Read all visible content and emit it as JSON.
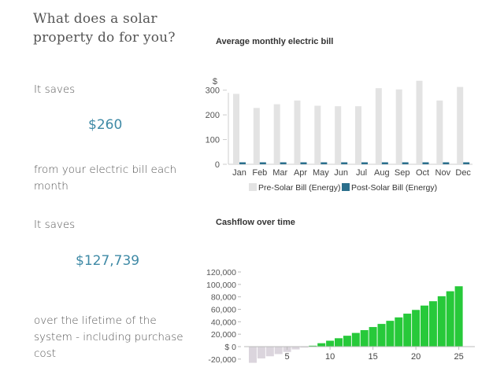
{
  "heading": "What does a solar property do for you?",
  "monthly": {
    "intro": "It saves",
    "value": "$260",
    "caption": "from your electric bill each month"
  },
  "lifetime": {
    "intro": "It saves",
    "value": "$127,739",
    "caption": "over the lifetime of the system - including purchase cost"
  },
  "chart_data": [
    {
      "type": "bar",
      "title": "Average monthly electric bill",
      "ylabel": "$",
      "categories": [
        "Jan",
        "Feb",
        "Mar",
        "Apr",
        "May",
        "Jun",
        "Jul",
        "Aug",
        "Sep",
        "Oct",
        "Nov",
        "Dec"
      ],
      "series": [
        {
          "name": "Pre-Solar Bill (Energy)",
          "color": "#e3e3e3",
          "values": [
            285,
            228,
            243,
            258,
            237,
            235,
            235,
            308,
            303,
            338,
            258,
            313
          ]
        },
        {
          "name": "Post-Solar Bill (Energy)",
          "color": "#2b6f8c",
          "values": [
            8,
            8,
            8,
            8,
            8,
            8,
            8,
            8,
            8,
            8,
            8,
            8
          ]
        }
      ],
      "yticks": [
        0,
        100,
        200,
        300
      ],
      "ylim": [
        0,
        350
      ],
      "legend": "bottom",
      "grid": false
    },
    {
      "type": "bar",
      "title": "Cashflow over time",
      "x": [
        1,
        2,
        3,
        4,
        5,
        6,
        7,
        8,
        9,
        10,
        11,
        12,
        13,
        14,
        15,
        16,
        17,
        18,
        19,
        20,
        21,
        22,
        23,
        24,
        25
      ],
      "values": [
        -26000,
        -19000,
        -15500,
        -12000,
        -8500,
        -4500,
        -1500,
        1500,
        5500,
        9500,
        13500,
        17500,
        22000,
        26500,
        31500,
        36500,
        41500,
        47000,
        53000,
        59000,
        66000,
        73000,
        81000,
        89000,
        97000
      ],
      "colors": {
        "negative": "#dbd5dd",
        "positive": "#27c93a"
      },
      "xticks": [
        "5",
        "10",
        "15",
        "20",
        "25"
      ],
      "yticks": [
        "120,000",
        "100,000",
        "80,000",
        "60,000",
        "40,000",
        "20,000",
        "$ 0",
        "-20,000"
      ],
      "ytick_values": [
        120000,
        100000,
        80000,
        60000,
        40000,
        20000,
        0,
        -20000
      ],
      "ylim": [
        -30000,
        130000
      ],
      "grid": false
    }
  ]
}
